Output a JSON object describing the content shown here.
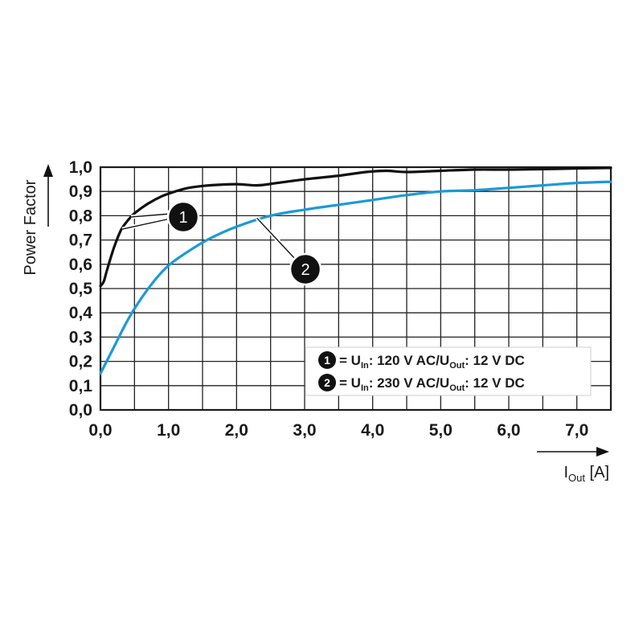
{
  "chart_data": {
    "type": "line",
    "ylabel": "Power Factor",
    "xlabel": {
      "main": "I",
      "sub": "Out",
      "unit": "[A]"
    },
    "xlim": [
      0,
      7.5
    ],
    "ylim": [
      0,
      1.0
    ],
    "grid": true,
    "x_ticks": [
      {
        "value": 0,
        "label": "0,0"
      },
      {
        "value": 1,
        "label": "1,0"
      },
      {
        "value": 2,
        "label": "2,0"
      },
      {
        "value": 3,
        "label": "3,0"
      },
      {
        "value": 4,
        "label": "4,0"
      },
      {
        "value": 5,
        "label": "5,0"
      },
      {
        "value": 6,
        "label": "6,0"
      },
      {
        "value": 7,
        "label": "7,0"
      }
    ],
    "y_ticks": [
      {
        "value": 0.0,
        "label": "0,0"
      },
      {
        "value": 0.1,
        "label": "0,1"
      },
      {
        "value": 0.2,
        "label": "0,2"
      },
      {
        "value": 0.3,
        "label": "0,3"
      },
      {
        "value": 0.4,
        "label": "0,4"
      },
      {
        "value": 0.5,
        "label": "0,5"
      },
      {
        "value": 0.6,
        "label": "0,6"
      },
      {
        "value": 0.7,
        "label": "0,7"
      },
      {
        "value": 0.8,
        "label": "0,8"
      },
      {
        "value": 0.9,
        "label": "0,9"
      },
      {
        "value": 1.0,
        "label": "1,0"
      }
    ],
    "series": [
      {
        "marker": "1",
        "color": "#111111",
        "x": [
          0.0,
          0.05,
          0.1,
          0.2,
          0.3,
          0.4,
          0.5,
          0.7,
          0.9,
          1.1,
          1.3,
          1.6,
          2.0,
          2.3,
          2.6,
          3.0,
          3.5,
          3.9,
          4.2,
          4.5,
          5.0,
          5.5,
          6.0,
          6.5,
          7.0,
          7.5
        ],
        "y": [
          0.51,
          0.53,
          0.58,
          0.67,
          0.74,
          0.78,
          0.81,
          0.85,
          0.88,
          0.9,
          0.915,
          0.925,
          0.93,
          0.925,
          0.935,
          0.95,
          0.965,
          0.98,
          0.985,
          0.98,
          0.985,
          0.99,
          0.99,
          0.992,
          0.995,
          0.997
        ]
      },
      {
        "marker": "2",
        "color": "#1a9ad6",
        "x": [
          0.0,
          0.2,
          0.4,
          0.6,
          0.8,
          1.0,
          1.3,
          1.6,
          2.0,
          2.5,
          3.0,
          3.5,
          4.0,
          4.5,
          5.0,
          5.5,
          6.0,
          6.5,
          7.0,
          7.5
        ],
        "y": [
          0.15,
          0.26,
          0.37,
          0.46,
          0.535,
          0.595,
          0.655,
          0.705,
          0.755,
          0.8,
          0.825,
          0.845,
          0.865,
          0.885,
          0.9,
          0.905,
          0.915,
          0.925,
          0.935,
          0.94
        ]
      }
    ],
    "annotations": [
      {
        "marker": "1",
        "target_x": 0.32,
        "target_y": 0.745
      },
      {
        "marker": "2",
        "target_x": 2.3,
        "target_y": 0.79
      }
    ],
    "legend": {
      "position": "bottom-right",
      "entries": [
        {
          "marker": "1",
          "prefix": "= U",
          "sub1": "In",
          "mid": ": 120 V AC/U",
          "sub2": "Out",
          "suffix": ": 12 V DC"
        },
        {
          "marker": "2",
          "prefix": "= U",
          "sub1": "In",
          "mid": ": 230 V AC/U",
          "sub2": "Out",
          "suffix": ": 12 V DC"
        }
      ]
    }
  }
}
